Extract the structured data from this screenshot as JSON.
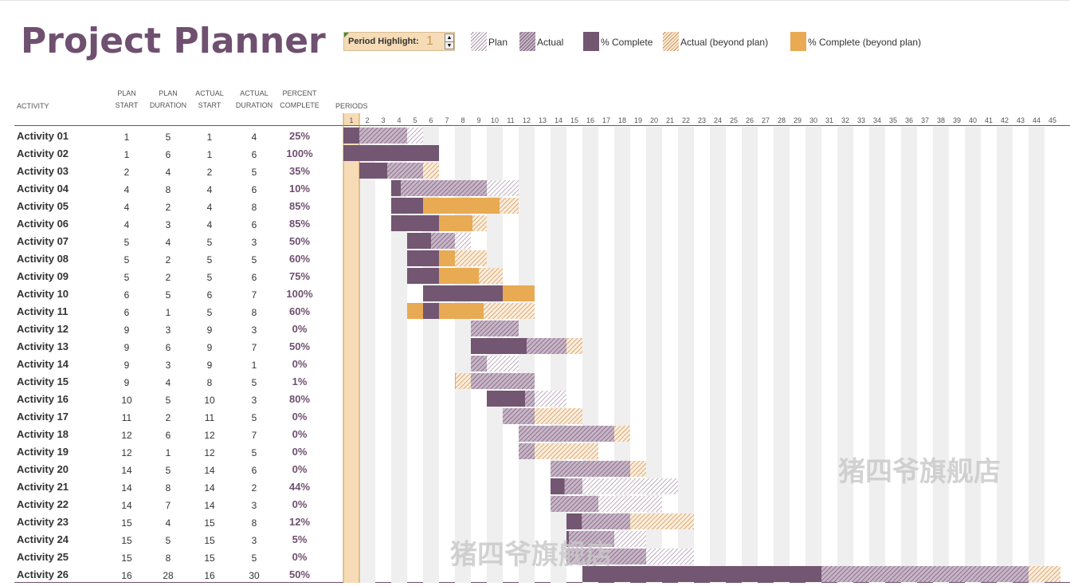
{
  "title": "Project Planner",
  "period_highlight": {
    "label": "Period Highlight:",
    "value": "1"
  },
  "legend": [
    {
      "label": "Plan",
      "swatch": "plan"
    },
    {
      "label": "Actual",
      "swatch": "actual"
    },
    {
      "label": "% Complete",
      "swatch": "pct"
    },
    {
      "label": "Actual (beyond plan)",
      "swatch": "actual-beyond"
    },
    {
      "label": "% Complete (beyond plan)",
      "swatch": "pct-beyond"
    }
  ],
  "headers": {
    "activity": "ACTIVITY",
    "plan_start": [
      "PLAN",
      "START"
    ],
    "plan_duration": [
      "PLAN",
      "DURATION"
    ],
    "actual_start": [
      "ACTUAL",
      "START"
    ],
    "actual_duration": [
      "ACTUAL",
      "DURATION"
    ],
    "percent_complete": [
      "PERCENT",
      "COMPLETE"
    ],
    "periods": "PERIODS"
  },
  "watermarks": [
    "猪四爷旗舰店",
    "猪四爷旗舰店"
  ],
  "colors": {
    "plum": "#735671",
    "plan_hatch": "#a08aa0",
    "actual_fill": "#c8b6c8",
    "orange": "#e8aa52",
    "orange_hatch": "#d08a48",
    "highlight": "#f7dbb6",
    "stripe": "#efefef"
  },
  "chart_data": {
    "type": "gantt",
    "period_count": 45,
    "highlight_period": 1,
    "activities": [
      {
        "name": "Activity 01",
        "plan_start": 1,
        "plan_duration": 5,
        "actual_start": 1,
        "actual_duration": 4,
        "percent": "25%",
        "pct_value": 0.25
      },
      {
        "name": "Activity 02",
        "plan_start": 1,
        "plan_duration": 6,
        "actual_start": 1,
        "actual_duration": 6,
        "percent": "100%",
        "pct_value": 1.0
      },
      {
        "name": "Activity 03",
        "plan_start": 2,
        "plan_duration": 4,
        "actual_start": 2,
        "actual_duration": 5,
        "percent": "35%",
        "pct_value": 0.35
      },
      {
        "name": "Activity 04",
        "plan_start": 4,
        "plan_duration": 8,
        "actual_start": 4,
        "actual_duration": 6,
        "percent": "10%",
        "pct_value": 0.1
      },
      {
        "name": "Activity 05",
        "plan_start": 4,
        "plan_duration": 2,
        "actual_start": 4,
        "actual_duration": 8,
        "percent": "85%",
        "pct_value": 0.85
      },
      {
        "name": "Activity 06",
        "plan_start": 4,
        "plan_duration": 3,
        "actual_start": 4,
        "actual_duration": 6,
        "percent": "85%",
        "pct_value": 0.85
      },
      {
        "name": "Activity 07",
        "plan_start": 5,
        "plan_duration": 4,
        "actual_start": 5,
        "actual_duration": 3,
        "percent": "50%",
        "pct_value": 0.5
      },
      {
        "name": "Activity 08",
        "plan_start": 5,
        "plan_duration": 2,
        "actual_start": 5,
        "actual_duration": 5,
        "percent": "60%",
        "pct_value": 0.6
      },
      {
        "name": "Activity 09",
        "plan_start": 5,
        "plan_duration": 2,
        "actual_start": 5,
        "actual_duration": 6,
        "percent": "75%",
        "pct_value": 0.75
      },
      {
        "name": "Activity 10",
        "plan_start": 6,
        "plan_duration": 5,
        "actual_start": 6,
        "actual_duration": 7,
        "percent": "100%",
        "pct_value": 1.0
      },
      {
        "name": "Activity 11",
        "plan_start": 6,
        "plan_duration": 1,
        "actual_start": 5,
        "actual_duration": 8,
        "percent": "60%",
        "pct_value": 0.6
      },
      {
        "name": "Activity 12",
        "plan_start": 9,
        "plan_duration": 3,
        "actual_start": 9,
        "actual_duration": 3,
        "percent": "0%",
        "pct_value": 0.0
      },
      {
        "name": "Activity 13",
        "plan_start": 9,
        "plan_duration": 6,
        "actual_start": 9,
        "actual_duration": 7,
        "percent": "50%",
        "pct_value": 0.5
      },
      {
        "name": "Activity 14",
        "plan_start": 9,
        "plan_duration": 3,
        "actual_start": 9,
        "actual_duration": 1,
        "percent": "0%",
        "pct_value": 0.0
      },
      {
        "name": "Activity 15",
        "plan_start": 9,
        "plan_duration": 4,
        "actual_start": 8,
        "actual_duration": 5,
        "percent": "1%",
        "pct_value": 0.01
      },
      {
        "name": "Activity 16",
        "plan_start": 10,
        "plan_duration": 5,
        "actual_start": 10,
        "actual_duration": 3,
        "percent": "80%",
        "pct_value": 0.8
      },
      {
        "name": "Activity 17",
        "plan_start": 11,
        "plan_duration": 2,
        "actual_start": 11,
        "actual_duration": 5,
        "percent": "0%",
        "pct_value": 0.0
      },
      {
        "name": "Activity 18",
        "plan_start": 12,
        "plan_duration": 6,
        "actual_start": 12,
        "actual_duration": 7,
        "percent": "0%",
        "pct_value": 0.0
      },
      {
        "name": "Activity 19",
        "plan_start": 12,
        "plan_duration": 1,
        "actual_start": 12,
        "actual_duration": 5,
        "percent": "0%",
        "pct_value": 0.0
      },
      {
        "name": "Activity 20",
        "plan_start": 14,
        "plan_duration": 5,
        "actual_start": 14,
        "actual_duration": 6,
        "percent": "0%",
        "pct_value": 0.0
      },
      {
        "name": "Activity 21",
        "plan_start": 14,
        "plan_duration": 8,
        "actual_start": 14,
        "actual_duration": 2,
        "percent": "44%",
        "pct_value": 0.44
      },
      {
        "name": "Activity 22",
        "plan_start": 14,
        "plan_duration": 7,
        "actual_start": 14,
        "actual_duration": 3,
        "percent": "0%",
        "pct_value": 0.0
      },
      {
        "name": "Activity 23",
        "plan_start": 15,
        "plan_duration": 4,
        "actual_start": 15,
        "actual_duration": 8,
        "percent": "12%",
        "pct_value": 0.12
      },
      {
        "name": "Activity 24",
        "plan_start": 15,
        "plan_duration": 5,
        "actual_start": 15,
        "actual_duration": 3,
        "percent": "5%",
        "pct_value": 0.05
      },
      {
        "name": "Activity 25",
        "plan_start": 15,
        "plan_duration": 8,
        "actual_start": 15,
        "actual_duration": 5,
        "percent": "0%",
        "pct_value": 0.0
      },
      {
        "name": "Activity 26",
        "plan_start": 16,
        "plan_duration": 28,
        "actual_start": 16,
        "actual_duration": 30,
        "percent": "50%",
        "pct_value": 0.5
      }
    ]
  }
}
